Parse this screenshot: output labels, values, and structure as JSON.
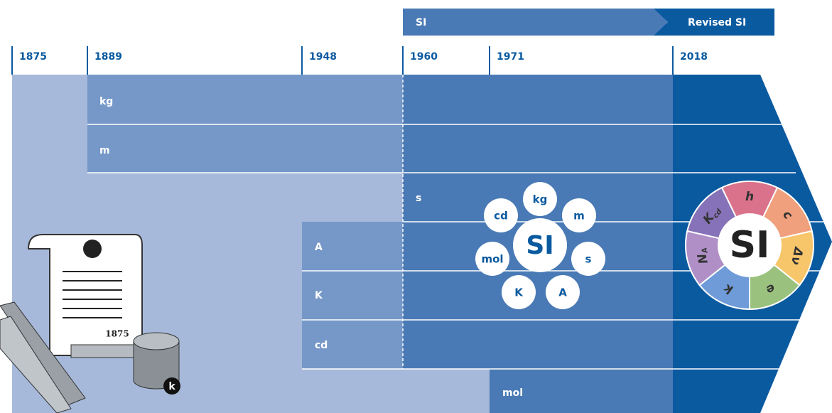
{
  "header": {
    "si": "SI",
    "revised_si": "Revised SI"
  },
  "timeline": {
    "years": [
      "1875",
      "1889",
      "1948",
      "1960",
      "1971",
      "2018"
    ]
  },
  "units": [
    "kg",
    "m",
    "s",
    "A",
    "K",
    "cd",
    "mol"
  ],
  "si_cluster": {
    "center": "SI",
    "units": [
      "kg",
      "m",
      "s",
      "A",
      "K",
      "mol",
      "cd"
    ]
  },
  "revised_si": {
    "center": "SI",
    "constants": [
      {
        "symbol": "h"
      },
      {
        "symbol": "c"
      },
      {
        "symbol": "Δν"
      },
      {
        "symbol": "e"
      },
      {
        "symbol": "k"
      },
      {
        "symbol": "N",
        "subscript": "A"
      },
      {
        "symbol": "K",
        "subscript": "cd"
      }
    ]
  },
  "illustration": {
    "document_year": "1875",
    "mass_symbol": "k"
  }
}
